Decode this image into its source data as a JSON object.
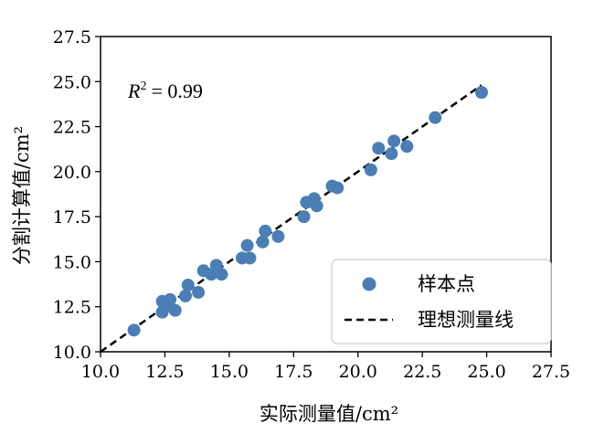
{
  "chart_data": {
    "type": "scatter",
    "xlabel": "实际测量值/cm²",
    "ylabel": "分割计算值/cm²",
    "xlim": [
      10.0,
      27.5
    ],
    "ylim": [
      10.0,
      27.5
    ],
    "xticks": [
      "10.0",
      "12.5",
      "15.0",
      "17.5",
      "20.0",
      "22.5",
      "25.0",
      "27.5"
    ],
    "yticks": [
      "10.0",
      "12.5",
      "15.0",
      "17.5",
      "20.0",
      "22.5",
      "25.0",
      "27.5"
    ],
    "grid": false,
    "legend_position": "lower-right",
    "annotation": {
      "r_label": "R",
      "r_exp": "2",
      "r_value": "= 0.99"
    },
    "series": [
      {
        "name": "样本点",
        "kind": "scatter",
        "color": "#4a7eb5",
        "points": [
          {
            "x": 11.3,
            "y": 11.2
          },
          {
            "x": 12.4,
            "y": 12.8
          },
          {
            "x": 12.5,
            "y": 12.5
          },
          {
            "x": 12.4,
            "y": 12.2
          },
          {
            "x": 12.7,
            "y": 12.9
          },
          {
            "x": 12.9,
            "y": 12.3
          },
          {
            "x": 13.3,
            "y": 13.1
          },
          {
            "x": 13.4,
            "y": 13.7
          },
          {
            "x": 13.8,
            "y": 13.3
          },
          {
            "x": 14.0,
            "y": 14.5
          },
          {
            "x": 14.3,
            "y": 14.3
          },
          {
            "x": 14.5,
            "y": 14.8
          },
          {
            "x": 14.7,
            "y": 14.3
          },
          {
            "x": 15.5,
            "y": 15.2
          },
          {
            "x": 15.8,
            "y": 15.2
          },
          {
            "x": 15.7,
            "y": 15.9
          },
          {
            "x": 16.3,
            "y": 16.1
          },
          {
            "x": 16.4,
            "y": 16.7
          },
          {
            "x": 16.9,
            "y": 16.4
          },
          {
            "x": 17.9,
            "y": 17.5
          },
          {
            "x": 18.0,
            "y": 18.3
          },
          {
            "x": 18.3,
            "y": 18.5
          },
          {
            "x": 18.4,
            "y": 18.1
          },
          {
            "x": 19.0,
            "y": 19.2
          },
          {
            "x": 19.2,
            "y": 19.1
          },
          {
            "x": 20.5,
            "y": 20.1
          },
          {
            "x": 20.8,
            "y": 21.3
          },
          {
            "x": 21.3,
            "y": 21.0
          },
          {
            "x": 21.4,
            "y": 21.7
          },
          {
            "x": 21.9,
            "y": 21.4
          },
          {
            "x": 23.0,
            "y": 23.0
          },
          {
            "x": 24.8,
            "y": 24.4
          }
        ]
      },
      {
        "name": "理想测量线",
        "kind": "line",
        "style": "dashed",
        "color": "#000000",
        "points": [
          {
            "x": 10.0,
            "y": 10.0
          },
          {
            "x": 24.8,
            "y": 24.8
          }
        ]
      }
    ]
  }
}
